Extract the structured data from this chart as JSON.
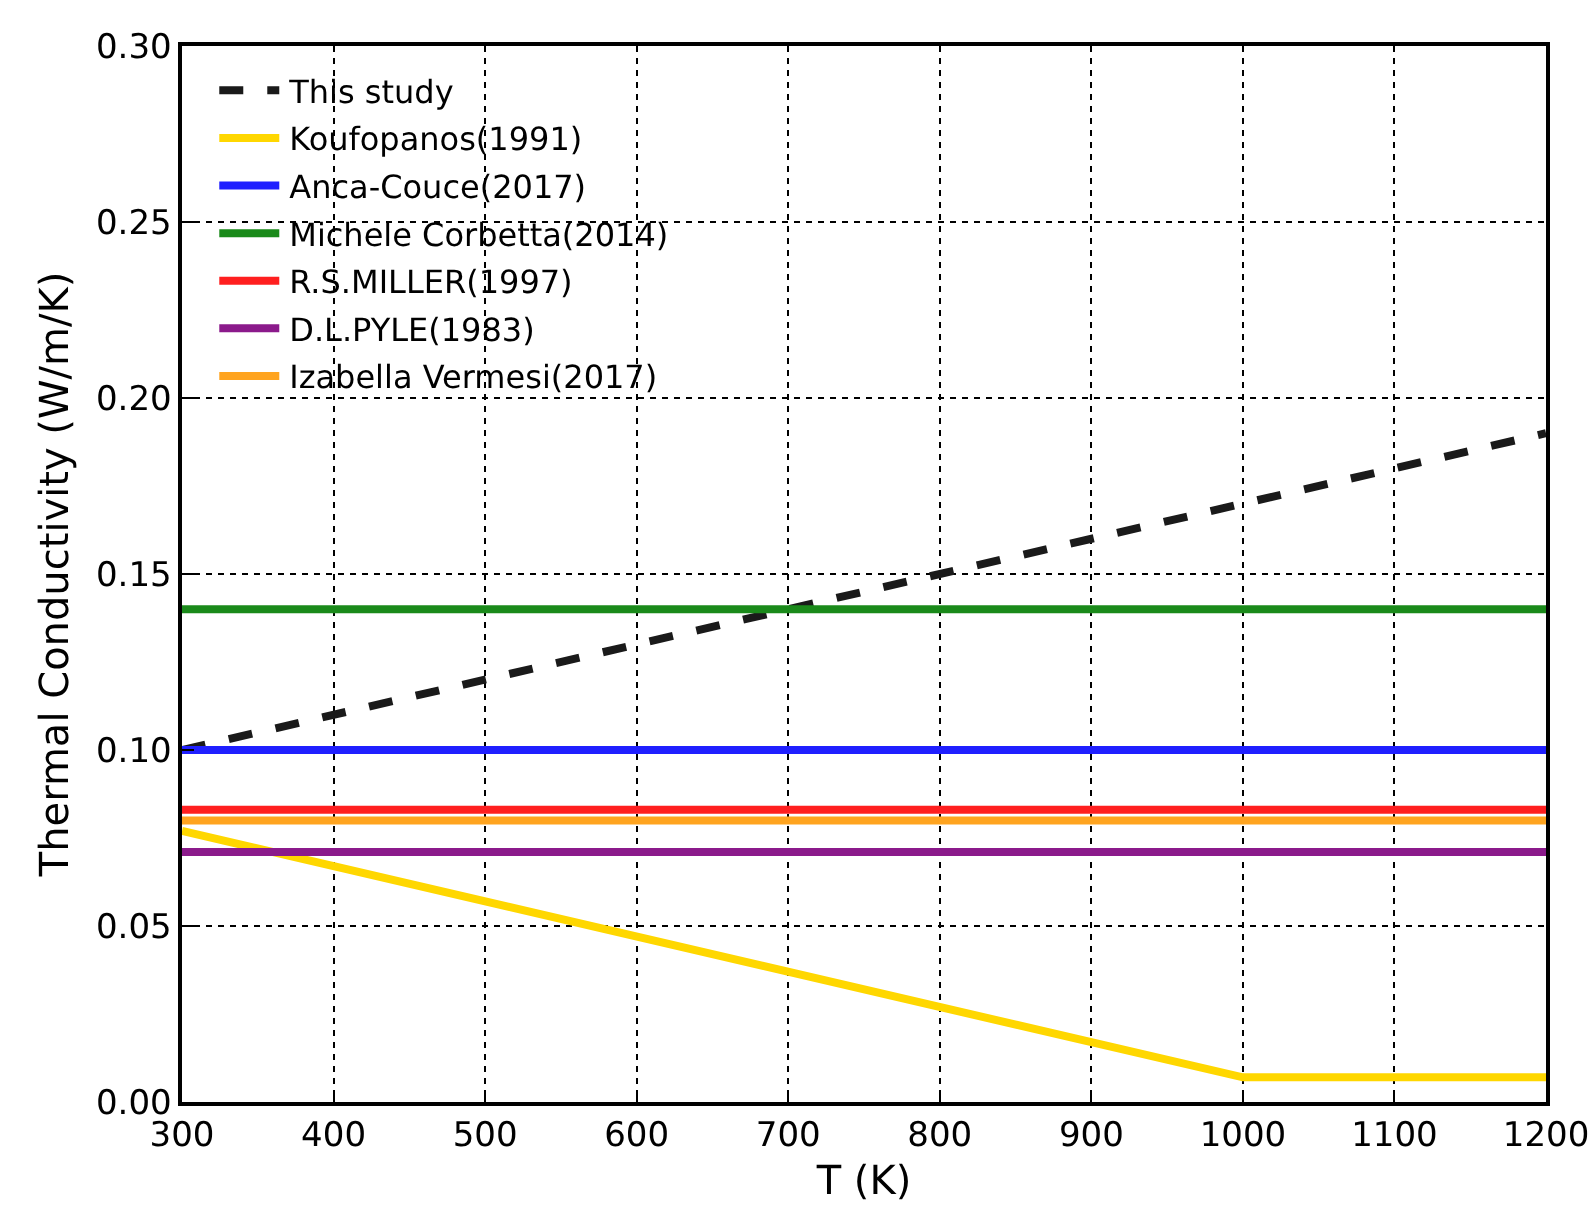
{
  "chart_data": {
    "type": "line",
    "xlabel": "T (K)",
    "ylabel": "Thermal Conductivity (W/m/K)",
    "xlim": [
      300,
      1200
    ],
    "xticks": [
      300,
      400,
      500,
      600,
      700,
      800,
      900,
      1000,
      1100,
      1200
    ],
    "ylim": [
      0,
      0.3
    ],
    "yticks": [
      {
        "value": 0,
        "label": "0.00"
      },
      {
        "value": 0.05,
        "label": "0.05"
      },
      {
        "value": 0.1,
        "label": "0.10"
      },
      {
        "value": 0.15,
        "label": "0.15"
      },
      {
        "value": 0.2,
        "label": "0.20"
      },
      {
        "value": 0.25,
        "label": "0.25"
      },
      {
        "value": 0.3,
        "label": "0.30"
      }
    ],
    "grid": true,
    "legend": "top left",
    "marker": "none",
    "series": [
      {
        "name": "This study",
        "color": "#1a1a1a",
        "line_style": "dashed",
        "x": [
          300,
          1200
        ],
        "values": [
          0.1,
          0.19
        ]
      },
      {
        "name": "Koufopanos(1991)",
        "color": "#ffd700",
        "x": [
          300,
          1000,
          1200
        ],
        "values": [
          0.077,
          0.007,
          0.007
        ]
      },
      {
        "name": "Anca-Couce(2017)",
        "color": "#1f1fff",
        "x": [
          300,
          1200
        ],
        "values": [
          0.1,
          0.1
        ]
      },
      {
        "name": "Michele Corbetta(2014)",
        "color": "#1a8a1a",
        "x": [
          300,
          1200
        ],
        "values": [
          0.14,
          0.14
        ]
      },
      {
        "name": "R.S.MILLER(1997)",
        "color": "#ff1f1f",
        "x": [
          300,
          1200
        ],
        "values": [
          0.083,
          0.083
        ]
      },
      {
        "name": "D.L.PYLE(1983)",
        "color": "#8b1a8b",
        "x": [
          300,
          1200
        ],
        "values": [
          0.071,
          0.071
        ]
      },
      {
        "name": "Izabella Vermesi(2017)",
        "color": "#ffa41f",
        "x": [
          300,
          1200
        ],
        "values": [
          0.08,
          0.08
        ]
      }
    ]
  }
}
